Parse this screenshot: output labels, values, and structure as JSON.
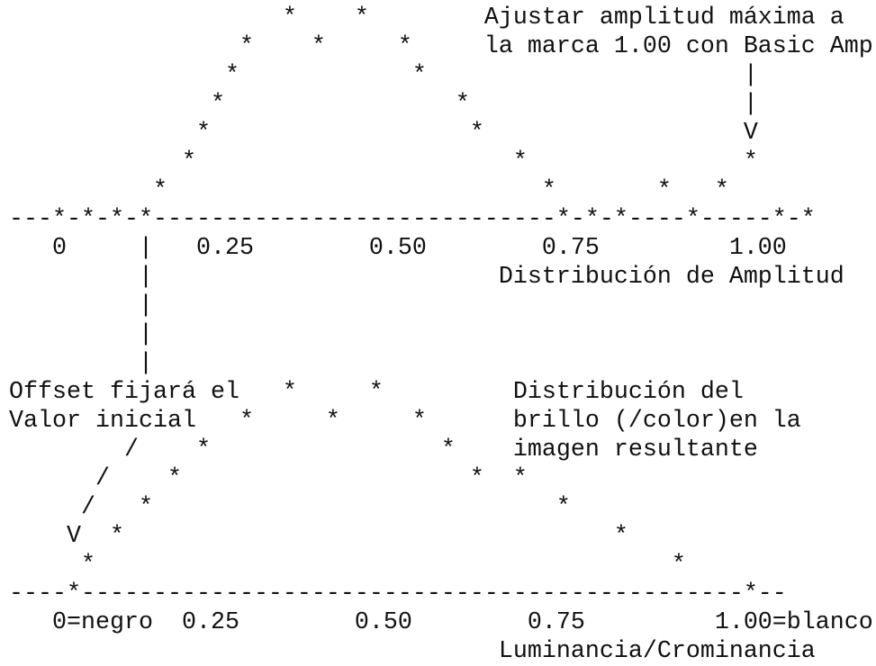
{
  "lines": [
    "                   *    *        Ajustar amplitud máxima a",
    "                *    *     *     la marca 1.00 con Basic Amp",
    "               *            *                      |",
    "              *                *                   |",
    "             *                  *                  V",
    "            *                      *               *",
    "          *                          *       *   *",
    "---*-*-*-*----------------------------*-*-*----*-----*-*",
    "   0     |   0.25        0.50        0.75         1.00",
    "         |                        Distribución de Amplitud",
    "         |",
    "         |",
    "         |",
    "Offset fijará el   *     *         Distribución del",
    "Valor inicial   *     *     *      brillo (/color)en la",
    "        /    *                *    imagen resultante",
    "      /    *                    *  *",
    "     /   *                            *",
    "    V  *                                  *",
    "     *                                        *",
    "----*----------------------------------------------*--",
    "   0=negro  0.25        0.50        0.75         1.00=blanco",
    "                                  Luminancia/Crominancia"
  ]
}
